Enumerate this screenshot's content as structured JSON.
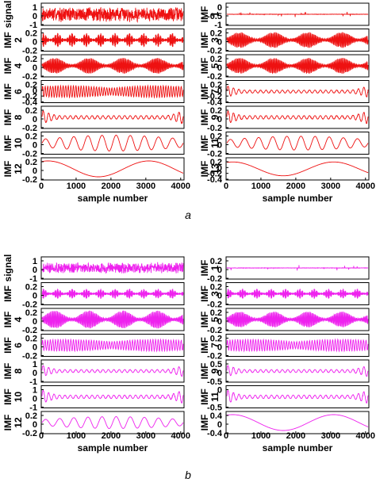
{
  "chart_data": {
    "type": "line",
    "panels": [
      {
        "label": "a",
        "color": "#ee1111",
        "xlabel": "sample number",
        "x_range": [
          0,
          4096
        ],
        "x_ticks": [
          "0",
          "1000",
          "2000",
          "3000",
          "4000"
        ],
        "columns": [
          [
            {
              "title": [
                "signal"
              ],
              "yticks": [
                "1",
                "0",
                "-1"
              ],
              "ylim": [
                -1,
                1
              ],
              "pattern": "noise",
              "amplitude": 0.8
            },
            {
              "title": [
                "IMF",
                "2"
              ],
              "yticks": [
                "0.2",
                "0",
                "-0.2"
              ],
              "ylim": [
                -0.2,
                0.2
              ],
              "pattern": "bursty-fast",
              "amplitude": 0.7
            },
            {
              "title": [
                "IMF",
                "4"
              ],
              "yticks": [
                "0.2",
                "0",
                "-0.2"
              ],
              "ylim": [
                -0.2,
                0.2
              ],
              "pattern": "bursty-medium",
              "amplitude": 0.8
            },
            {
              "title": [
                "IMF",
                "6"
              ],
              "yticks": [
                "0.2",
                "0",
                "-0.2",
                "-0.4"
              ],
              "ylim": [
                -0.4,
                0.3
              ],
              "pattern": "oscillation-medium",
              "amplitude": 0.6
            },
            {
              "title": [
                "IMF",
                "8"
              ],
              "yticks": [
                "0.2",
                "0",
                "-0.2"
              ],
              "ylim": [
                -0.3,
                0.3
              ],
              "pattern": "edge-bursts",
              "amplitude": 0.7
            },
            {
              "title": [
                "IMF",
                "10"
              ],
              "yticks": [
                "0.2",
                "0",
                "-0.2"
              ],
              "ylim": [
                -0.2,
                0.3
              ],
              "pattern": "slow-oscillation",
              "amplitude": 0.8
            },
            {
              "title": [
                "IMF",
                "12"
              ],
              "yticks": [
                "0.2",
                "0",
                "-0.2"
              ],
              "ylim": [
                -0.3,
                0.3
              ],
              "pattern": "trend",
              "amplitude": 0.8
            }
          ],
          [
            {
              "title": [
                "IMF",
                "1"
              ],
              "yticks": [
                "0",
                "-0.5",
                "-1"
              ],
              "ylim": [
                -1,
                0.2
              ],
              "pattern": "flat-spikes",
              "amplitude": 0.1
            },
            {
              "title": [
                "IMF",
                "3"
              ],
              "yticks": [
                "0.2",
                "0",
                "-0.2"
              ],
              "ylim": [
                -0.2,
                0.2
              ],
              "pattern": "bursty-medium",
              "amplitude": 0.8
            },
            {
              "title": [
                "IMF",
                "5"
              ],
              "yticks": [
                "0.2",
                "0",
                "-0.2"
              ],
              "ylim": [
                -0.2,
                0.2
              ],
              "pattern": "bursty-medium",
              "amplitude": 0.8
            },
            {
              "title": [
                "IMF",
                "7"
              ],
              "yticks": [
                "0.2",
                "0",
                "-0.2",
                "-0.4"
              ],
              "ylim": [
                -0.4,
                0.3
              ],
              "pattern": "edge-bursts",
              "amplitude": 0.6
            },
            {
              "title": [
                "IMF",
                "9"
              ],
              "yticks": [
                "0.2",
                "0",
                "-0.2"
              ],
              "ylim": [
                -0.3,
                0.3
              ],
              "pattern": "edge-bursts",
              "amplitude": 0.7
            },
            {
              "title": [
                "IMF",
                "11"
              ],
              "yticks": [
                "0.2",
                "0",
                "-0.2"
              ],
              "ylim": [
                -0.2,
                0.3
              ],
              "pattern": "slow-oscillation",
              "amplitude": 0.7
            },
            {
              "title": [
                "IMF",
                "13"
              ],
              "yticks": [
                "0.2",
                "0",
                "-0.2",
                "-0.4"
              ],
              "ylim": [
                -0.4,
                0.3
              ],
              "pattern": "trend",
              "amplitude": 0.7
            }
          ]
        ]
      },
      {
        "label": "b",
        "color": "#ee22ee",
        "xlabel": "sample number",
        "x_range": [
          0,
          4096
        ],
        "x_ticks": [
          "0",
          "1000",
          "2000",
          "3000",
          "4000"
        ],
        "columns": [
          [
            {
              "title": [
                "signal"
              ],
              "yticks": [
                "1",
                "0",
                "-1"
              ],
              "ylim": [
                -1,
                1
              ],
              "pattern": "noise",
              "amplitude": 0.6
            },
            {
              "title": [
                "IMF"
              ],
              "yticks": [
                "0.2",
                "0",
                "-0.2"
              ],
              "ylim": [
                -0.2,
                0.2
              ],
              "pattern": "bursty-fast",
              "amplitude": 0.5
            },
            {
              "title": [
                "IMF",
                "4"
              ],
              "yticks": [
                "0.2",
                "0",
                "-0.2"
              ],
              "ylim": [
                -0.2,
                0.2
              ],
              "pattern": "bursty-medium",
              "amplitude": 0.9
            },
            {
              "title": [
                "IMF",
                "6"
              ],
              "yticks": [
                "0.2",
                "0",
                "-0.2"
              ],
              "ylim": [
                -0.2,
                0.2
              ],
              "pattern": "oscillation-medium",
              "amplitude": 0.6
            },
            {
              "title": [
                "IMF",
                "8"
              ],
              "yticks": [
                "1",
                "0",
                "-1"
              ],
              "ylim": [
                -1,
                1
              ],
              "pattern": "edge-bursts",
              "amplitude": 0.6
            },
            {
              "title": [
                "IMF",
                "10"
              ],
              "yticks": [
                "1",
                "0",
                "-1"
              ],
              "ylim": [
                -1,
                1
              ],
              "pattern": "edge-bursts",
              "amplitude": 0.7
            },
            {
              "title": [
                "IMF",
                "12"
              ],
              "yticks": [
                "0.2",
                "0",
                "-0.2"
              ],
              "ylim": [
                -0.2,
                0.2
              ],
              "pattern": "slow-oscillation",
              "amplitude": 0.6
            }
          ],
          [
            {
              "title": [
                "IMF",
                "1"
              ],
              "yticks": [
                "0.2",
                "0",
                "-0.2"
              ],
              "ylim": [
                -0.3,
                0.3
              ],
              "pattern": "flat-spikes",
              "amplitude": 0.1
            },
            {
              "title": [
                "IMF",
                "3"
              ],
              "yticks": [
                "0.2",
                "0",
                "-0.2"
              ],
              "ylim": [
                -0.2,
                0.2
              ],
              "pattern": "bursty-fast",
              "amplitude": 0.5
            },
            {
              "title": [
                "IMF",
                "5"
              ],
              "yticks": [
                "0.2",
                "0",
                "-0.2"
              ],
              "ylim": [
                -0.2,
                0.2
              ],
              "pattern": "bursty-medium",
              "amplitude": 0.8
            },
            {
              "title": [
                "IMF",
                "7"
              ],
              "yticks": [
                "0.2",
                "0",
                "-0.2"
              ],
              "ylim": [
                -0.2,
                0.2
              ],
              "pattern": "oscillation-medium",
              "amplitude": 0.6
            },
            {
              "title": [
                "IMF",
                "9"
              ],
              "yticks": [
                "0.5",
                "0",
                "-0.5"
              ],
              "ylim": [
                -0.5,
                0.5
              ],
              "pattern": "edge-bursts",
              "amplitude": 0.6
            },
            {
              "title": [
                "IMF",
                "11"
              ],
              "yticks": [
                "0",
                "-0.5"
              ],
              "ylim": [
                -0.6,
                0.3
              ],
              "pattern": "edge-bursts",
              "amplitude": 0.7
            },
            {
              "title": [
                "IMF"
              ],
              "yticks": [
                "0.4",
                "0",
                "-0.4"
              ],
              "ylim": [
                -0.4,
                0.4
              ],
              "pattern": "trend",
              "amplitude": 0.8
            }
          ]
        ]
      }
    ]
  }
}
